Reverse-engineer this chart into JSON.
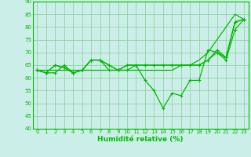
{
  "xlabel": "Humidité relative (%)",
  "bg_color": "#cceee8",
  "grid_color": "#88cc99",
  "line_color": "#00bb00",
  "xlim": [
    -0.5,
    23.5
  ],
  "ylim": [
    40,
    90
  ],
  "yticks": [
    40,
    45,
    50,
    55,
    60,
    65,
    70,
    75,
    80,
    85,
    90
  ],
  "xticks": [
    0,
    1,
    2,
    3,
    4,
    5,
    6,
    7,
    8,
    9,
    10,
    11,
    12,
    13,
    14,
    15,
    16,
    17,
    18,
    19,
    20,
    21,
    22,
    23
  ],
  "series": [
    [
      63,
      62,
      62,
      65,
      62,
      63,
      67,
      67,
      63,
      63,
      63,
      65,
      59,
      55,
      48,
      54,
      53,
      59,
      59,
      71,
      70,
      67,
      79,
      83
    ],
    [
      63,
      62,
      65,
      64,
      62,
      63,
      67,
      67,
      65,
      63,
      65,
      65,
      65,
      65,
      65,
      65,
      65,
      65,
      65,
      67,
      70,
      68,
      82,
      83
    ],
    [
      63,
      62,
      65,
      64,
      62,
      63,
      67,
      67,
      65,
      63,
      65,
      65,
      65,
      65,
      65,
      65,
      65,
      65,
      65,
      67,
      71,
      68,
      82,
      83
    ],
    [
      63,
      63,
      63,
      63,
      63,
      63,
      63,
      63,
      63,
      63,
      63,
      63,
      63,
      63,
      63,
      63,
      65,
      65,
      67,
      70,
      75,
      80,
      85,
      83
    ]
  ]
}
